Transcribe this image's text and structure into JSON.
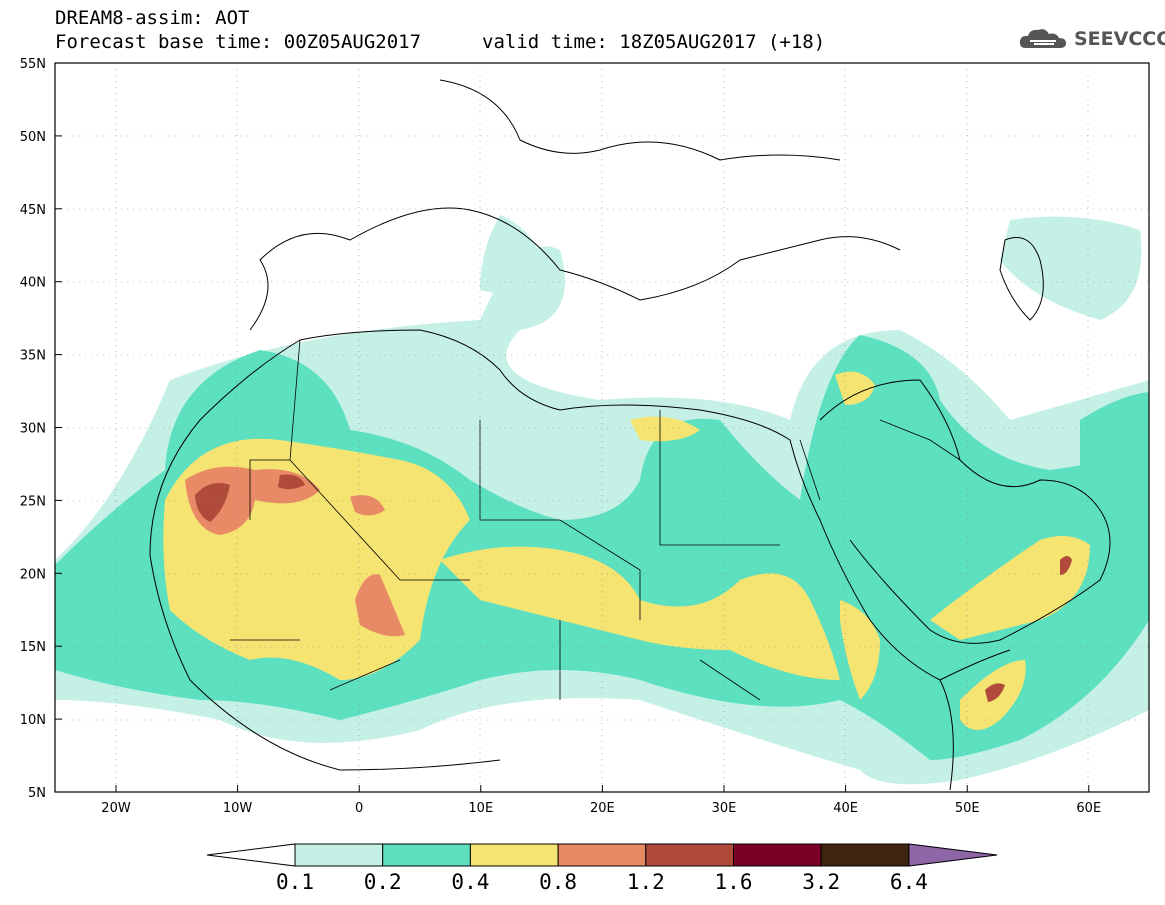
{
  "header": {
    "title_line1": "DREAM8-assim: AOT",
    "title_line2": "Forecast base time: 00Z05AUG2017",
    "valid_time": "valid time: 18Z05AUG2017 (+18)",
    "logo_text": "SEEVCCC"
  },
  "axes": {
    "lat_labels": [
      "55N",
      "50N",
      "45N",
      "40N",
      "35N",
      "30N",
      "25N",
      "20N",
      "15N",
      "10N",
      "5N"
    ],
    "lon_labels": [
      "20W",
      "10W",
      "0",
      "10E",
      "20E",
      "30E",
      "40E",
      "50E",
      "60E"
    ]
  },
  "colorbar": {
    "colors": [
      "#ffffff",
      "#c4f0e6",
      "#5ce0c0",
      "#f5e472",
      "#e88a66",
      "#b04a3a",
      "#7a0024",
      "#3f2510",
      "#8f66a8"
    ],
    "labels": [
      "0.1",
      "0.2",
      "0.4",
      "0.8",
      "1.2",
      "1.6",
      "3.2",
      "6.4"
    ]
  }
}
